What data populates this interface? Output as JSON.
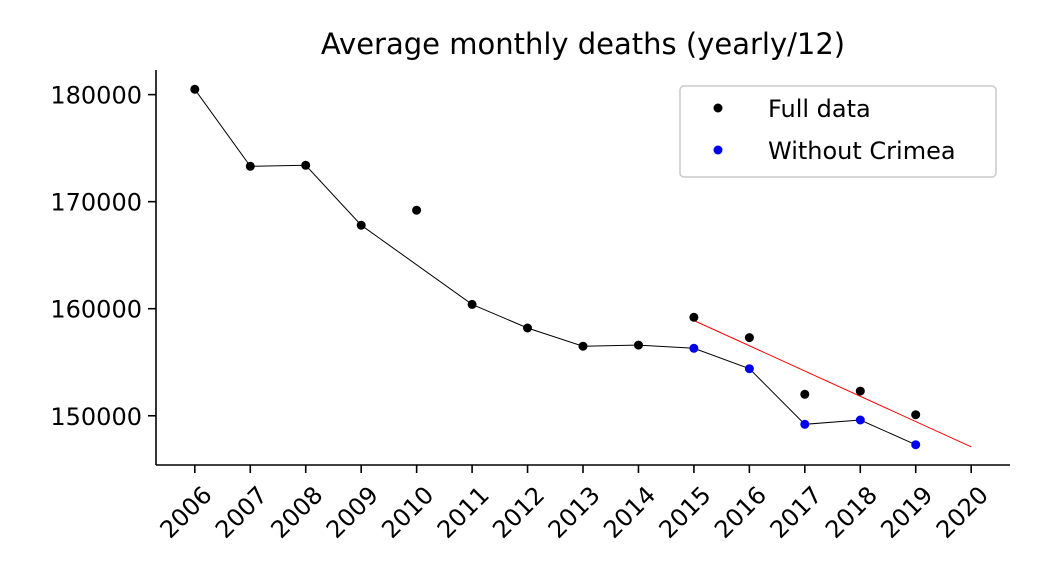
{
  "chart_data": {
    "type": "scatter",
    "title": "Average monthly deaths (yearly/12)",
    "xlabel": "",
    "ylabel": "",
    "x_ticks": [
      "2006",
      "2007",
      "2008",
      "2009",
      "2010",
      "2011",
      "2012",
      "2013",
      "2014",
      "2015",
      "2016",
      "2017",
      "2018",
      "2019",
      "2020"
    ],
    "y_ticks": [
      "150000",
      "160000",
      "170000",
      "180000"
    ],
    "xlim": [
      2005.3,
      2020.7
    ],
    "ylim": [
      145400,
      182300
    ],
    "grid": false,
    "legend_position": "top-right",
    "series": [
      {
        "name": "Full data",
        "color": "#000000",
        "marker": "dot",
        "x": [
          2006,
          2007,
          2008,
          2009,
          2010,
          2011,
          2012,
          2013,
          2014,
          2015,
          2016,
          2017,
          2018,
          2019
        ],
        "y": [
          180500,
          173300,
          173400,
          167800,
          169200,
          160400,
          158200,
          156500,
          156600,
          159200,
          157300,
          152000,
          152300,
          150100
        ]
      },
      {
        "name": "Without Crimea",
        "color": "#0000ee",
        "marker": "dot",
        "x": [
          2015,
          2016,
          2017,
          2018,
          2019
        ],
        "y": [
          156300,
          154400,
          149200,
          149600,
          147300
        ]
      }
    ],
    "connecting_line": {
      "color": "#000000",
      "x": [
        2006,
        2007,
        2008,
        2009,
        2011,
        2012,
        2013,
        2014,
        2015,
        2016,
        2017,
        2018,
        2019
      ],
      "y": [
        180500,
        173300,
        173400,
        167800,
        160400,
        158200,
        156500,
        156600,
        156300,
        154400,
        149200,
        149600,
        147300
      ]
    },
    "trend_line": {
      "color": "#ff0000",
      "x": [
        2015,
        2020
      ],
      "y": [
        158900,
        147100
      ]
    }
  }
}
